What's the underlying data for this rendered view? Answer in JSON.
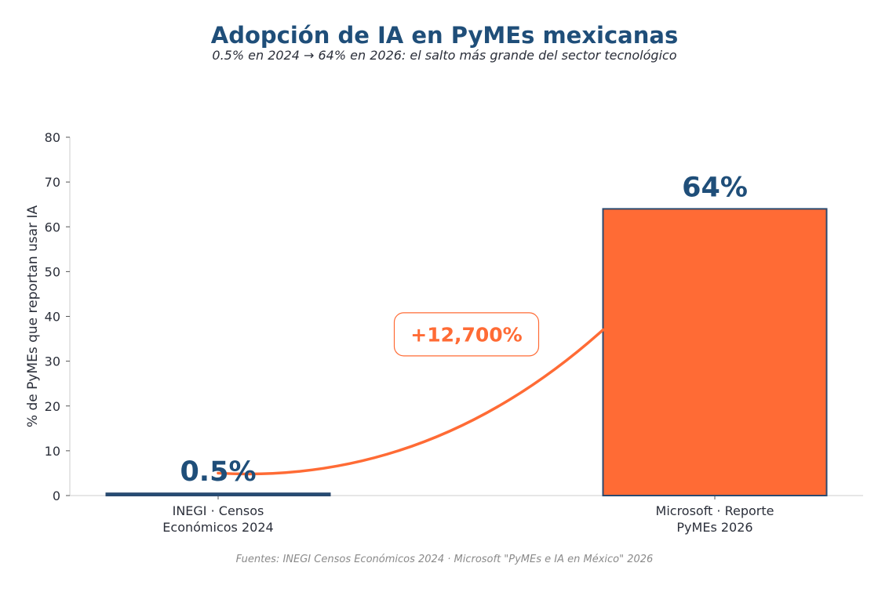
{
  "chart_data": {
    "type": "bar",
    "title": "Adopción de IA en PyMEs mexicanas",
    "subtitle": "0.5% en 2024 → 64% en 2026: el salto más grande del sector tecnológico",
    "ylabel": "% de PyMEs que reportan usar IA",
    "xlabel": "",
    "ylim": [
      0,
      80
    ],
    "yticks": [
      0,
      10,
      20,
      30,
      40,
      50,
      60,
      70,
      80
    ],
    "categories": [
      [
        "INEGI · Censos",
        "Económicos 2024"
      ],
      [
        "Microsoft · Reporte",
        "PyMEs 2026"
      ]
    ],
    "values": [
      0.5,
      64
    ],
    "value_labels": [
      "0.5%",
      "64%"
    ],
    "bar_colors": [
      "#1f4e79",
      "#ff6b35"
    ],
    "bar_edge_color": "#2b4a6f",
    "annotation": {
      "text": "+12,700%",
      "color": "#ff6b35",
      "arrow_from": [
        0,
        5
      ],
      "arrow_to": [
        1,
        37
      ],
      "label_at": [
        0.5,
        36
      ]
    },
    "source": "Fuentes: INEGI Censos Económicos 2024 · Microsoft \"PyMEs e IA en México\" 2026",
    "grid": false
  }
}
